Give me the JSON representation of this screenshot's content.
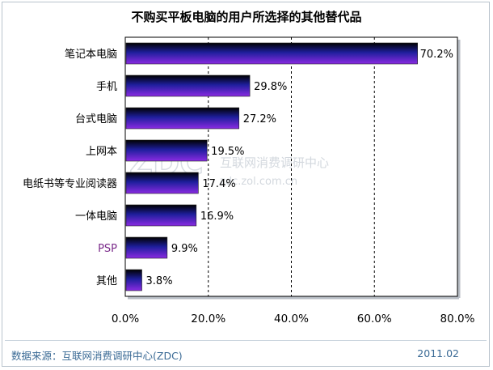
{
  "title": "不购买平板电脑的用户所选择的其他替代品",
  "footer": {
    "source": "数据来源：互联网消费调研中心(ZDC)",
    "date": "2011.02"
  },
  "watermark": {
    "logo": "ZDC",
    "cn": "互联网消费调研中心",
    "url": "zdc.zol.com.cn"
  },
  "colors": {
    "bar_top": "#000000",
    "bar_mid": "#1e1e9c",
    "bar_bottom": "#8a2be2",
    "grid": "#000000",
    "label_psp": "#7a2a8a"
  },
  "chart_data": {
    "type": "bar",
    "orientation": "horizontal",
    "categories": [
      "笔记本电脑",
      "手机",
      "台式电脑",
      "上网本",
      "电纸书等专业阅读器",
      "一体电脑",
      "PSP",
      "其他"
    ],
    "values": [
      70.2,
      29.8,
      27.2,
      19.5,
      17.4,
      16.9,
      9.9,
      3.8
    ],
    "value_labels": [
      "70.2%",
      "29.8%",
      "27.2%",
      "19.5%",
      "17.4%",
      "16.9%",
      "9.9%",
      "3.8%"
    ],
    "xlim": [
      0,
      80
    ],
    "xticks": [
      "0.0%",
      "20.0%",
      "40.0%",
      "60.0%",
      "80.0%"
    ],
    "grid": true,
    "title": "不购买平板电脑的用户所选择的其他替代品"
  }
}
